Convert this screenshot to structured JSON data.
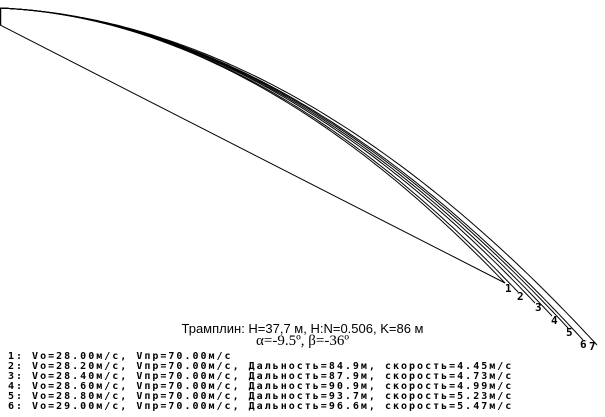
{
  "header": {
    "title": "Трамплин: H=37,7 м, H:N=0.506, K=86 м",
    "angles": "α=-9.5º,  β=-36º"
  },
  "trajectory_labels": [
    "1",
    "2",
    "3",
    "4",
    "5",
    "6",
    "7"
  ],
  "legend": [
    "1: Vo=28.00м/с, Vпр=70.00м/с",
    "2: Vo=28.20м/с, Vпр=70.00м/с, Дальность=84.9м, скорость=4.45м/с",
    "3: Vo=28.40м/с, Vпр=70.00м/с, Дальность=87.9м, скорость=4.73м/с",
    "4: Vo=28.60м/с, Vпр=70.00м/с, Дальность=90.9м, скорость=4.99м/с",
    "5: Vo=28.80м/с, Vпр=70.00м/с, Дальность=93.7м, скорость=5.23м/с",
    "6: Vo=29.00м/с, Vпр=70.00м/с, Дальность=96.6м, скорость=5.47м/с"
  ],
  "colors": {
    "line": "#000000",
    "background": "#ffffff"
  }
}
